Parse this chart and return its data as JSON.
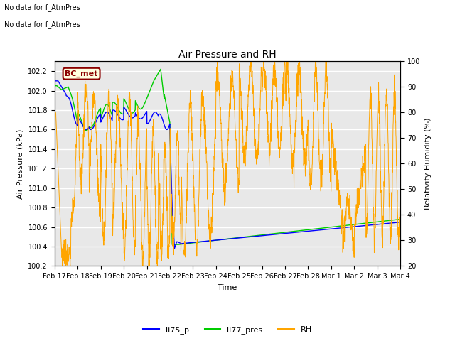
{
  "title": "Air Pressure and RH",
  "xlabel": "Time",
  "ylabel_left": "Air Pressure (kPa)",
  "ylabel_right": "Relativity Humidity (%)",
  "ylim_left": [
    100.2,
    102.3
  ],
  "ylim_right": [
    20,
    100
  ],
  "yticks_left": [
    100.2,
    100.4,
    100.6,
    100.8,
    101.0,
    101.2,
    101.4,
    101.6,
    101.8,
    102.0,
    102.2
  ],
  "yticks_right": [
    20,
    30,
    40,
    50,
    60,
    70,
    80,
    90,
    100
  ],
  "text_no_data_1": "No data for f_AtmPres",
  "text_no_data_2": "No data for f_AtmPres",
  "annotation_bc_met": "BC_met",
  "color_li75": "#0000ff",
  "color_li77": "#00cc00",
  "color_rh": "#ffa500",
  "background_color": "#e8e8e8",
  "figure_bg": "#ffffff",
  "grid_color": "#ffffff",
  "legend_labels": [
    "li75_p",
    "li77_pres",
    "RH"
  ]
}
